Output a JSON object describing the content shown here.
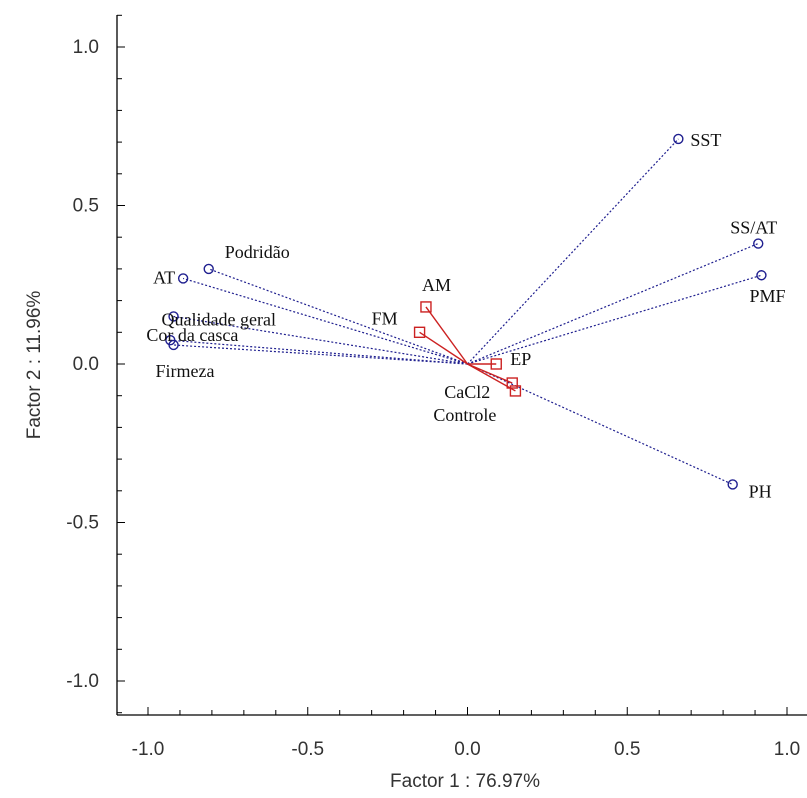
{
  "chart_data": {
    "type": "scatter",
    "xlabel": "Factor 1 : 76.97%",
    "ylabel": "Factor 2 : 11.96%",
    "xlim": [
      -1.1,
      1.05
    ],
    "ylim": [
      -1.1,
      1.1
    ],
    "xticks": [
      "-1.0",
      "-0.5",
      "0.0",
      "0.5",
      "1.0"
    ],
    "yticks": [
      "1.0",
      "0.5",
      "0.0",
      "-0.5",
      "-1.0"
    ],
    "grid": false,
    "colors": {
      "variables": "#1f1f8f",
      "treatments": "#cc2222"
    },
    "variables": [
      {
        "label": "SST",
        "x": 0.66,
        "y": 0.71
      },
      {
        "label": "SS/AT",
        "x": 0.91,
        "y": 0.38
      },
      {
        "label": "PMF",
        "x": 0.92,
        "y": 0.28
      },
      {
        "label": "PH",
        "x": 0.83,
        "y": -0.38
      },
      {
        "label": "AT",
        "x": -0.89,
        "y": 0.27
      },
      {
        "label": "Podridão",
        "x": -0.81,
        "y": 0.3
      },
      {
        "label": "Qualidade geral",
        "x": -0.92,
        "y": 0.15
      },
      {
        "label": "Cor da casca",
        "x": -0.93,
        "y": 0.075
      },
      {
        "label": "Firmeza",
        "x": -0.92,
        "y": 0.06
      }
    ],
    "treatments": [
      {
        "label": "AM",
        "x": -0.13,
        "y": 0.18
      },
      {
        "label": "FM",
        "x": -0.15,
        "y": 0.1
      },
      {
        "label": "EP",
        "x": 0.09,
        "y": 0.0
      },
      {
        "label": "CaCl2",
        "x": 0.14,
        "y": -0.06
      },
      {
        "label": "Controle",
        "x": 0.15,
        "y": -0.085
      }
    ]
  }
}
